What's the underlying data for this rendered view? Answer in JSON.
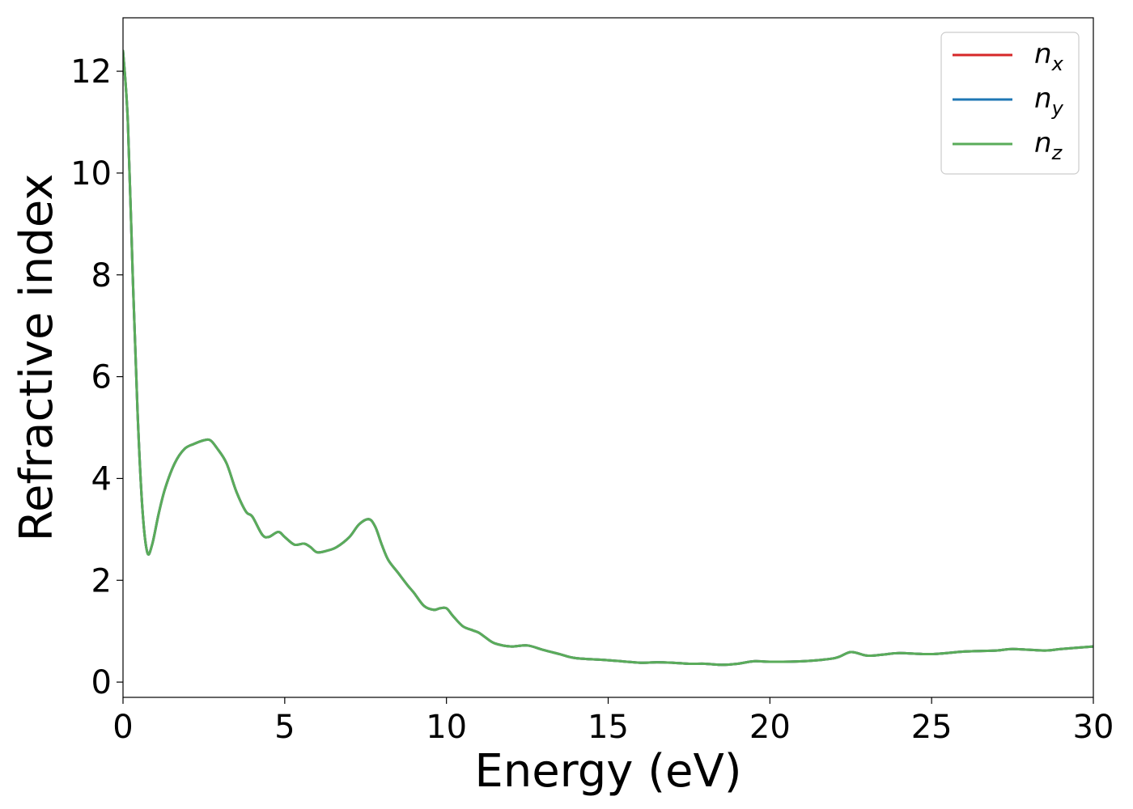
{
  "chart_data": {
    "type": "line",
    "title": "",
    "xlabel": "Energy (eV)",
    "ylabel": "Refractive index",
    "xlim": [
      0,
      30
    ],
    "ylim": [
      -0.3,
      13.05
    ],
    "xticks": [
      0,
      5,
      10,
      15,
      20,
      25,
      30
    ],
    "yticks": [
      0,
      2,
      4,
      6,
      8,
      10,
      12
    ],
    "grid": false,
    "legend_position": "top-right",
    "series": [
      {
        "name": "n_x",
        "label_base": "n",
        "label_sub": "x",
        "color": "#d62728",
        "x": [
          0.0,
          0.15,
          0.3,
          0.45,
          0.6,
          0.75,
          0.9,
          1.1,
          1.3,
          1.6,
          1.9,
          2.2,
          2.5,
          2.7,
          2.9,
          3.2,
          3.5,
          3.8,
          4.0,
          4.3,
          4.5,
          4.8,
          5.0,
          5.3,
          5.6,
          5.8,
          6.0,
          6.3,
          6.6,
          7.0,
          7.3,
          7.6,
          7.8,
          8.0,
          8.2,
          8.5,
          8.8,
          9.0,
          9.3,
          9.6,
          9.8,
          10.0,
          10.2,
          10.5,
          10.8,
          11.0,
          11.2,
          11.5,
          12.0,
          12.5,
          13.0,
          13.5,
          14.0,
          15.0,
          16.0,
          16.5,
          17.0,
          17.5,
          18.0,
          18.5,
          19.0,
          19.5,
          20.0,
          21.0,
          22.0,
          22.5,
          23.0,
          23.5,
          24.0,
          25.0,
          26.0,
          27.0,
          27.5,
          28.5,
          29.0,
          30.0
        ],
        "y": [
          12.4,
          11.0,
          8.0,
          5.3,
          3.4,
          2.55,
          2.7,
          3.3,
          3.8,
          4.3,
          4.58,
          4.68,
          4.75,
          4.75,
          4.6,
          4.3,
          3.75,
          3.35,
          3.25,
          2.9,
          2.85,
          2.95,
          2.85,
          2.7,
          2.72,
          2.65,
          2.55,
          2.58,
          2.65,
          2.85,
          3.1,
          3.2,
          3.05,
          2.7,
          2.4,
          2.15,
          1.9,
          1.75,
          1.5,
          1.42,
          1.45,
          1.45,
          1.3,
          1.1,
          1.02,
          0.97,
          0.88,
          0.76,
          0.7,
          0.72,
          0.63,
          0.55,
          0.47,
          0.43,
          0.38,
          0.39,
          0.38,
          0.36,
          0.36,
          0.34,
          0.36,
          0.41,
          0.4,
          0.41,
          0.47,
          0.59,
          0.52,
          0.54,
          0.57,
          0.55,
          0.6,
          0.62,
          0.65,
          0.62,
          0.65,
          0.7
        ]
      },
      {
        "name": "n_y",
        "label_base": "n",
        "label_sub": "y",
        "color": "#1f77b4",
        "x": [
          0.0,
          0.15,
          0.3,
          0.45,
          0.6,
          0.75,
          0.9,
          1.1,
          1.3,
          1.6,
          1.9,
          2.2,
          2.5,
          2.7,
          2.9,
          3.2,
          3.5,
          3.8,
          4.0,
          4.3,
          4.5,
          4.8,
          5.0,
          5.3,
          5.6,
          5.8,
          6.0,
          6.3,
          6.6,
          7.0,
          7.3,
          7.6,
          7.8,
          8.0,
          8.2,
          8.5,
          8.8,
          9.0,
          9.3,
          9.6,
          9.8,
          10.0,
          10.2,
          10.5,
          10.8,
          11.0,
          11.2,
          11.5,
          12.0,
          12.5,
          13.0,
          13.5,
          14.0,
          15.0,
          16.0,
          16.5,
          17.0,
          17.5,
          18.0,
          18.5,
          19.0,
          19.5,
          20.0,
          21.0,
          22.0,
          22.5,
          23.0,
          23.5,
          24.0,
          25.0,
          26.0,
          27.0,
          27.5,
          28.5,
          29.0,
          30.0
        ],
        "y": [
          12.4,
          11.0,
          8.0,
          5.3,
          3.4,
          2.55,
          2.7,
          3.3,
          3.8,
          4.3,
          4.58,
          4.68,
          4.75,
          4.75,
          4.6,
          4.3,
          3.75,
          3.35,
          3.25,
          2.9,
          2.85,
          2.95,
          2.85,
          2.7,
          2.72,
          2.65,
          2.55,
          2.58,
          2.65,
          2.85,
          3.1,
          3.2,
          3.05,
          2.7,
          2.4,
          2.15,
          1.9,
          1.75,
          1.5,
          1.42,
          1.45,
          1.45,
          1.3,
          1.1,
          1.02,
          0.97,
          0.88,
          0.76,
          0.7,
          0.72,
          0.63,
          0.55,
          0.47,
          0.43,
          0.38,
          0.39,
          0.38,
          0.36,
          0.36,
          0.34,
          0.36,
          0.41,
          0.4,
          0.41,
          0.47,
          0.59,
          0.52,
          0.54,
          0.57,
          0.55,
          0.6,
          0.62,
          0.65,
          0.62,
          0.65,
          0.7
        ]
      },
      {
        "name": "n_z",
        "label_base": "n",
        "label_sub": "z",
        "color": "#5aac5a",
        "x": [
          0.0,
          0.15,
          0.3,
          0.45,
          0.6,
          0.75,
          0.9,
          1.1,
          1.3,
          1.6,
          1.9,
          2.2,
          2.5,
          2.7,
          2.9,
          3.2,
          3.5,
          3.8,
          4.0,
          4.3,
          4.5,
          4.8,
          5.0,
          5.3,
          5.6,
          5.8,
          6.0,
          6.3,
          6.6,
          7.0,
          7.3,
          7.6,
          7.8,
          8.0,
          8.2,
          8.5,
          8.8,
          9.0,
          9.3,
          9.6,
          9.8,
          10.0,
          10.2,
          10.5,
          10.8,
          11.0,
          11.2,
          11.5,
          12.0,
          12.5,
          13.0,
          13.5,
          14.0,
          15.0,
          16.0,
          16.5,
          17.0,
          17.5,
          18.0,
          18.5,
          19.0,
          19.5,
          20.0,
          21.0,
          22.0,
          22.5,
          23.0,
          23.5,
          24.0,
          25.0,
          26.0,
          27.0,
          27.5,
          28.5,
          29.0,
          30.0
        ],
        "y": [
          12.4,
          11.0,
          8.0,
          5.3,
          3.4,
          2.55,
          2.7,
          3.3,
          3.8,
          4.3,
          4.58,
          4.68,
          4.75,
          4.75,
          4.6,
          4.3,
          3.75,
          3.35,
          3.25,
          2.9,
          2.85,
          2.95,
          2.85,
          2.7,
          2.72,
          2.65,
          2.55,
          2.58,
          2.65,
          2.85,
          3.1,
          3.2,
          3.05,
          2.7,
          2.4,
          2.15,
          1.9,
          1.75,
          1.5,
          1.42,
          1.45,
          1.45,
          1.3,
          1.1,
          1.02,
          0.97,
          0.88,
          0.76,
          0.7,
          0.72,
          0.63,
          0.55,
          0.47,
          0.43,
          0.38,
          0.39,
          0.38,
          0.36,
          0.36,
          0.34,
          0.36,
          0.41,
          0.4,
          0.41,
          0.47,
          0.59,
          0.52,
          0.54,
          0.57,
          0.55,
          0.6,
          0.62,
          0.65,
          0.62,
          0.65,
          0.7
        ]
      }
    ]
  }
}
